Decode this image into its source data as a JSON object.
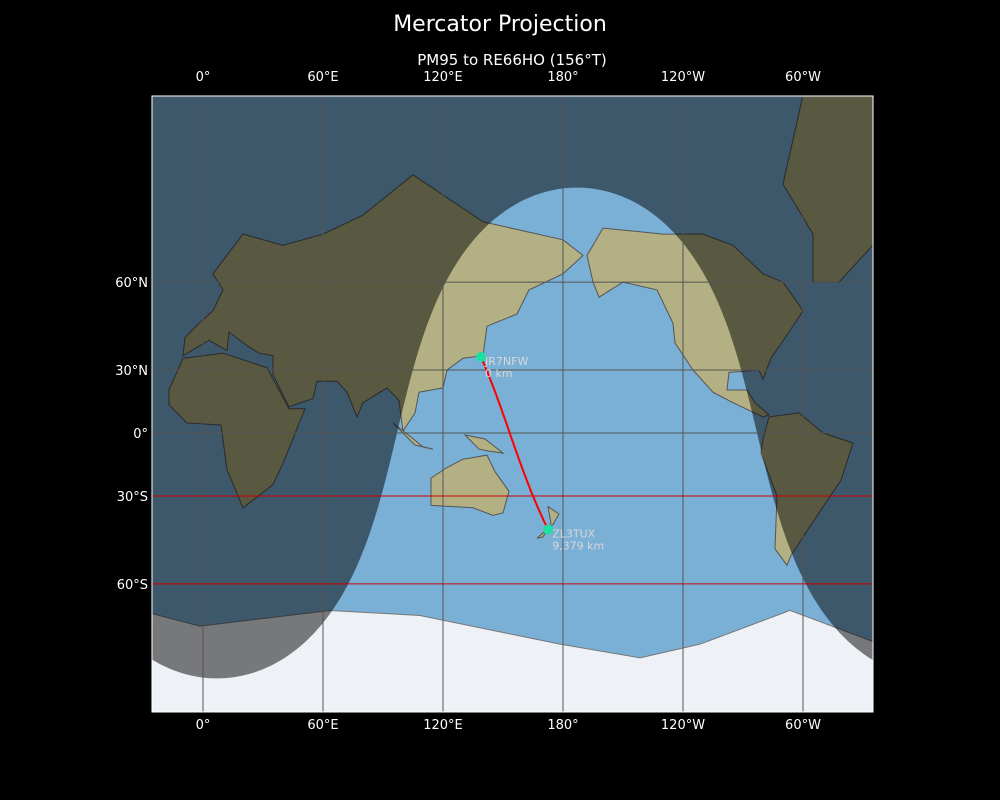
{
  "figure": {
    "title": "Mercator Projection",
    "subtitle": "PM95 to RE66HO (156°T)"
  },
  "map": {
    "projection": "mercator",
    "central_longitude": 155,
    "lon_ticks": [
      {
        "lon": 0,
        "label": "0°"
      },
      {
        "lon": 60,
        "label": "60°E"
      },
      {
        "lon": 120,
        "label": "120°E"
      },
      {
        "lon": 180,
        "label": "180°"
      },
      {
        "lon": 240,
        "label": "120°W"
      },
      {
        "lon": 300,
        "label": "60°W"
      }
    ],
    "lat_ticks": [
      {
        "lat": 60,
        "label": "60°N"
      },
      {
        "lat": 30,
        "label": "30°N"
      },
      {
        "lat": 0,
        "label": "0°"
      },
      {
        "lat": -30,
        "label": "30°S"
      },
      {
        "lat": -60,
        "label": "60°S"
      }
    ],
    "highlighted_latitudes": [
      -30,
      -60
    ],
    "grid": true,
    "day_night_shading": true,
    "colors": {
      "ocean": "#7aafd6",
      "land": "#b3b083",
      "ice": "#eef1f6",
      "grid": "#555555",
      "highlight_grid": "#cc0000",
      "path": "#ff0000",
      "station": "#1de0a0"
    }
  },
  "stations": [
    {
      "call": "JR7NFW",
      "distance": "0 km",
      "grid": "PM95",
      "lat": 35.5,
      "lon": 139.0
    },
    {
      "call": "ZL3TUX",
      "distance": "9,379 km",
      "grid": "RE66HO",
      "lat": -43.4,
      "lon": 172.6
    }
  ]
}
